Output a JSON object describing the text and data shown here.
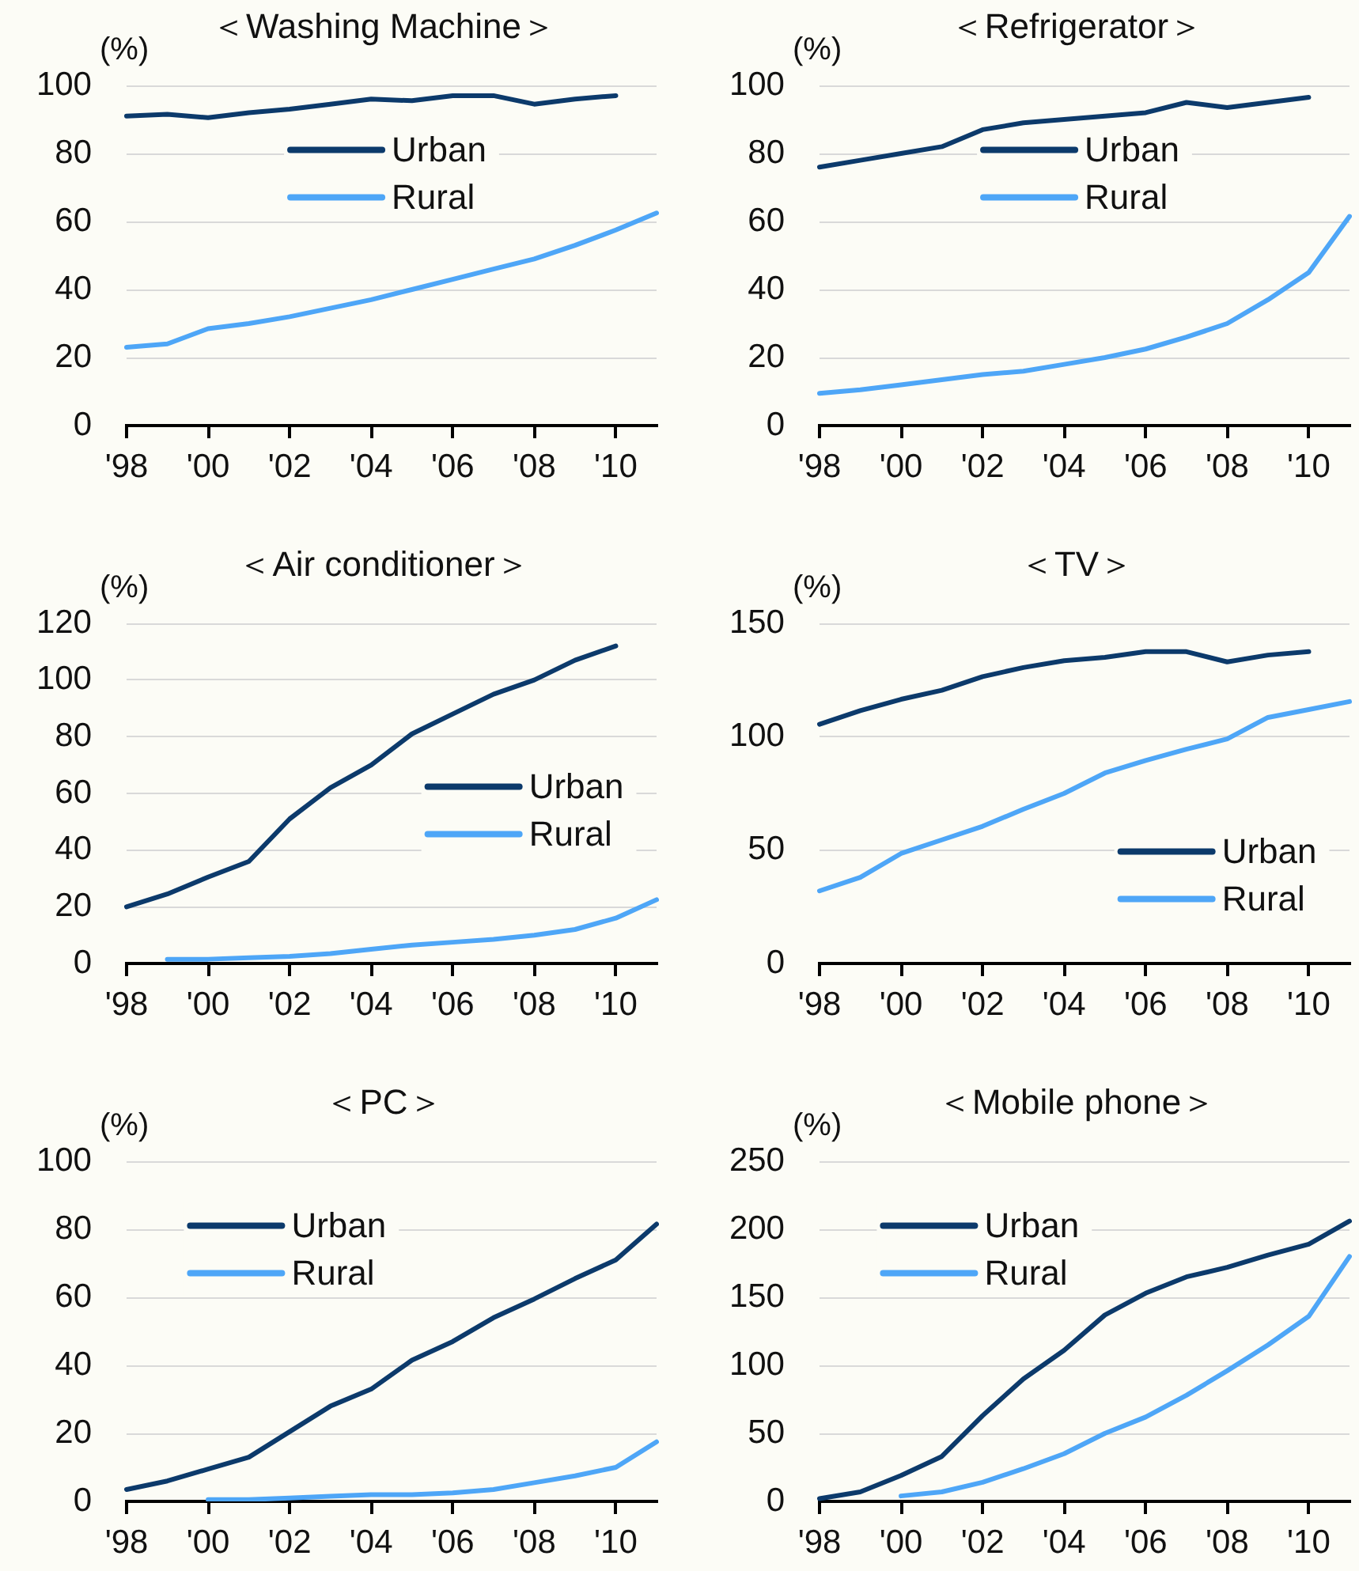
{
  "chart_data": [
    {
      "type": "line",
      "title": "＜Washing Machine＞",
      "ylabel": "(%)",
      "categories": [
        "'98",
        null,
        "'00",
        null,
        "'02",
        null,
        "'04",
        null,
        "'06",
        null,
        "'08",
        null,
        "'10",
        null
      ],
      "series": [
        {
          "name": "Urban",
          "color": "#0c3a6b",
          "values": [
            91,
            91.5,
            90.5,
            92,
            93,
            94.5,
            96,
            95.5,
            97,
            97,
            94.5,
            96,
            97,
            null
          ]
        },
        {
          "name": "Rural",
          "color": "#4ea6f7",
          "values": [
            23,
            24,
            28.5,
            30,
            32,
            34.5,
            37,
            40,
            43,
            46,
            49,
            53,
            57.5,
            62.5
          ]
        }
      ],
      "ylim": [
        0,
        100
      ],
      "yticks": [
        0,
        20,
        40,
        60,
        80,
        100
      ],
      "grid": "y",
      "legend": "top"
    },
    {
      "type": "line",
      "title": "＜Refrigerator＞",
      "ylabel": "(%)",
      "categories": [
        "'98",
        null,
        "'00",
        null,
        "'02",
        null,
        "'04",
        null,
        "'06",
        null,
        "'08",
        null,
        "'10",
        null
      ],
      "series": [
        {
          "name": "Urban",
          "color": "#0c3a6b",
          "values": [
            76,
            78,
            80,
            82,
            87,
            89,
            90,
            91,
            92,
            95,
            93.5,
            95,
            96.5,
            null
          ]
        },
        {
          "name": "Rural",
          "color": "#4ea6f7",
          "values": [
            9.5,
            10.5,
            12,
            13.5,
            15,
            16,
            18,
            20,
            22.5,
            26,
            30,
            37,
            45,
            61.5
          ]
        }
      ],
      "ylim": [
        0,
        100
      ],
      "yticks": [
        0,
        20,
        40,
        60,
        80,
        100
      ],
      "grid": "y",
      "legend": "top"
    },
    {
      "type": "line",
      "title": "＜Air conditioner＞",
      "ylabel": "(%)",
      "categories": [
        "'98",
        null,
        "'00",
        null,
        "'02",
        null,
        "'04",
        null,
        "'06",
        null,
        "'08",
        null,
        "'10",
        null
      ],
      "series": [
        {
          "name": "Urban",
          "color": "#0c3a6b",
          "values": [
            20,
            24.5,
            30.5,
            36,
            51,
            62,
            70,
            81,
            88,
            95,
            100,
            107,
            112,
            null
          ]
        },
        {
          "name": "Rural",
          "color": "#4ea6f7",
          "values": [
            null,
            1.5,
            1.5,
            2,
            2.5,
            3.5,
            5,
            6.5,
            7.5,
            8.5,
            10,
            12,
            16,
            22.5
          ]
        }
      ],
      "ylim": [
        0,
        120
      ],
      "yticks": [
        0,
        20,
        40,
        60,
        80,
        100,
        120
      ],
      "grid": "y",
      "legend": "right"
    },
    {
      "type": "line",
      "title": "＜TV＞",
      "ylabel": "(%)",
      "categories": [
        "'98",
        null,
        "'00",
        null,
        "'02",
        null,
        "'04",
        null,
        "'06",
        null,
        "'08",
        null,
        "'10",
        null
      ],
      "series": [
        {
          "name": "Urban",
          "color": "#0c3a6b",
          "values": [
            105.5,
            111.5,
            116.5,
            120.5,
            126.5,
            130.5,
            133.5,
            135,
            137.5,
            137.5,
            133,
            136,
            137.5,
            null
          ]
        },
        {
          "name": "Rural",
          "color": "#4ea6f7",
          "values": [
            32,
            38,
            48.5,
            54.5,
            60.5,
            68,
            75,
            84,
            89.5,
            94.5,
            99,
            108.5,
            112,
            115.5
          ]
        }
      ],
      "ylim": [
        0,
        150
      ],
      "yticks": [
        0,
        50,
        100,
        150
      ],
      "grid": "y",
      "legend": "bottom right"
    },
    {
      "type": "line",
      "title": "＜PC＞",
      "ylabel": "(%)",
      "categories": [
        "'98",
        null,
        "'00",
        null,
        "'02",
        null,
        "'04",
        null,
        "'06",
        null,
        "'08",
        null,
        "'10",
        null
      ],
      "series": [
        {
          "name": "Urban",
          "color": "#0c3a6b",
          "values": [
            3.5,
            6,
            9.5,
            13,
            20.5,
            28,
            33,
            41.5,
            47,
            54,
            59.5,
            65.5,
            71,
            81.5
          ]
        },
        {
          "name": "Rural",
          "color": "#4ea6f7",
          "values": [
            null,
            null,
            0.5,
            0.5,
            1,
            1.5,
            2,
            2,
            2.5,
            3.5,
            5.5,
            7.5,
            10,
            17.5
          ]
        }
      ],
      "ylim": [
        0,
        100
      ],
      "yticks": [
        0,
        20,
        40,
        60,
        80,
        100
      ],
      "grid": "y",
      "legend": "top left"
    },
    {
      "type": "line",
      "title": "＜Mobile phone＞",
      "ylabel": "(%)",
      "categories": [
        "'98",
        null,
        "'00",
        null,
        "'02",
        null,
        "'04",
        null,
        "'06",
        null,
        "'08",
        null,
        "'10",
        null
      ],
      "series": [
        {
          "name": "Urban",
          "color": "#0c3a6b",
          "values": [
            2,
            7,
            19,
            33,
            63,
            90,
            111,
            137,
            153,
            165,
            172,
            181,
            189,
            206
          ]
        },
        {
          "name": "Rural",
          "color": "#4ea6f7",
          "values": [
            null,
            null,
            4,
            7,
            14,
            24,
            35,
            50,
            62,
            78,
            96,
            115,
            136,
            180
          ]
        }
      ],
      "ylim": [
        0,
        250
      ],
      "yticks": [
        0,
        50,
        100,
        150,
        200,
        250
      ],
      "grid": "y",
      "legend": "top left"
    }
  ]
}
